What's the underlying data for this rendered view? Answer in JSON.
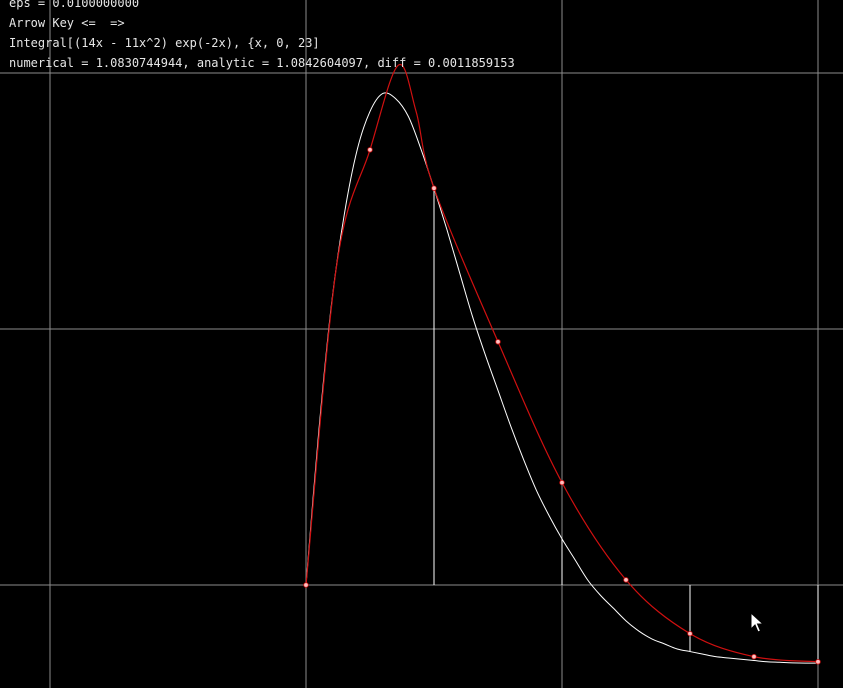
{
  "hud": {
    "eps": "eps = 0.0100000000",
    "keys": "Arrow Key <=  =>",
    "integral": "Integral[(14x - 11x^2) exp(-2x), {x, 0, 23]",
    "result": "numerical = 1.0830744944, analytic = 1.0842604097, diff = 0.0011859153"
  },
  "cursor_icon": "arrow-cursor-icon",
  "colors": {
    "background": "#000000",
    "grid": "#8c8c8c",
    "exact_curve": "#ffffff",
    "approx_curve": "#d01010",
    "node": "#ffc0c0",
    "text": "#e6e6e6"
  },
  "chart_data": {
    "type": "line",
    "grid": true,
    "xlim": [
      -1,
      2
    ],
    "ylim": [
      -0.4,
      2.2
    ],
    "gridlines_x": [
      -1,
      0,
      1,
      2
    ],
    "gridlines_y": [
      0,
      1,
      2
    ],
    "series": [
      {
        "role": "exact",
        "x": [
          0,
          0.05,
          0.1,
          0.15,
          0.2,
          0.25,
          0.3,
          0.35,
          0.4,
          0.45,
          0.5,
          0.55,
          0.6,
          0.65,
          0.7,
          0.75,
          0.8,
          0.85,
          0.9,
          0.95,
          1.0,
          1.05,
          1.1,
          1.15,
          1.2,
          1.25,
          1.3,
          1.35,
          1.4,
          1.45,
          1.5,
          1.55,
          1.6,
          1.65,
          1.7,
          1.75,
          1.8,
          1.85,
          1.9,
          1.95,
          2.0
        ],
        "y": [
          0,
          0.6,
          1.1,
          1.45,
          1.7,
          1.85,
          1.92,
          1.9,
          1.83,
          1.7,
          1.55,
          1.39,
          1.22,
          1.05,
          0.9,
          0.76,
          0.62,
          0.49,
          0.37,
          0.27,
          0.18,
          0.1,
          0.02,
          -0.04,
          -0.09,
          -0.14,
          -0.18,
          -0.21,
          -0.23,
          -0.25,
          -0.26,
          -0.27,
          -0.28,
          -0.285,
          -0.29,
          -0.295,
          -0.3,
          -0.302,
          -0.304,
          -0.305,
          -0.305
        ]
      },
      {
        "role": "piecewise",
        "knots_x": [
          0,
          0.25,
          0.5,
          0.75,
          1.0,
          1.25,
          1.5,
          1.75,
          2.0
        ],
        "knots_y": [
          0,
          1.7,
          1.55,
          0.95,
          0.4,
          0.02,
          -0.19,
          -0.28,
          -0.3
        ],
        "nodes_x": [
          0,
          0.25,
          0.5,
          0.75,
          1.0,
          1.25,
          1.5,
          1.75,
          2.0
        ],
        "nodes_y": [
          0,
          1.7,
          1.55,
          0.95,
          0.4,
          0.02,
          -0.19,
          -0.28,
          -0.3
        ],
        "peak_x": 0.36,
        "peak_y": 2.03
      }
    ],
    "verticals_x": [
      0.5,
      1.0,
      1.5,
      2.0
    ],
    "title": "",
    "xlabel": "",
    "ylabel": ""
  }
}
